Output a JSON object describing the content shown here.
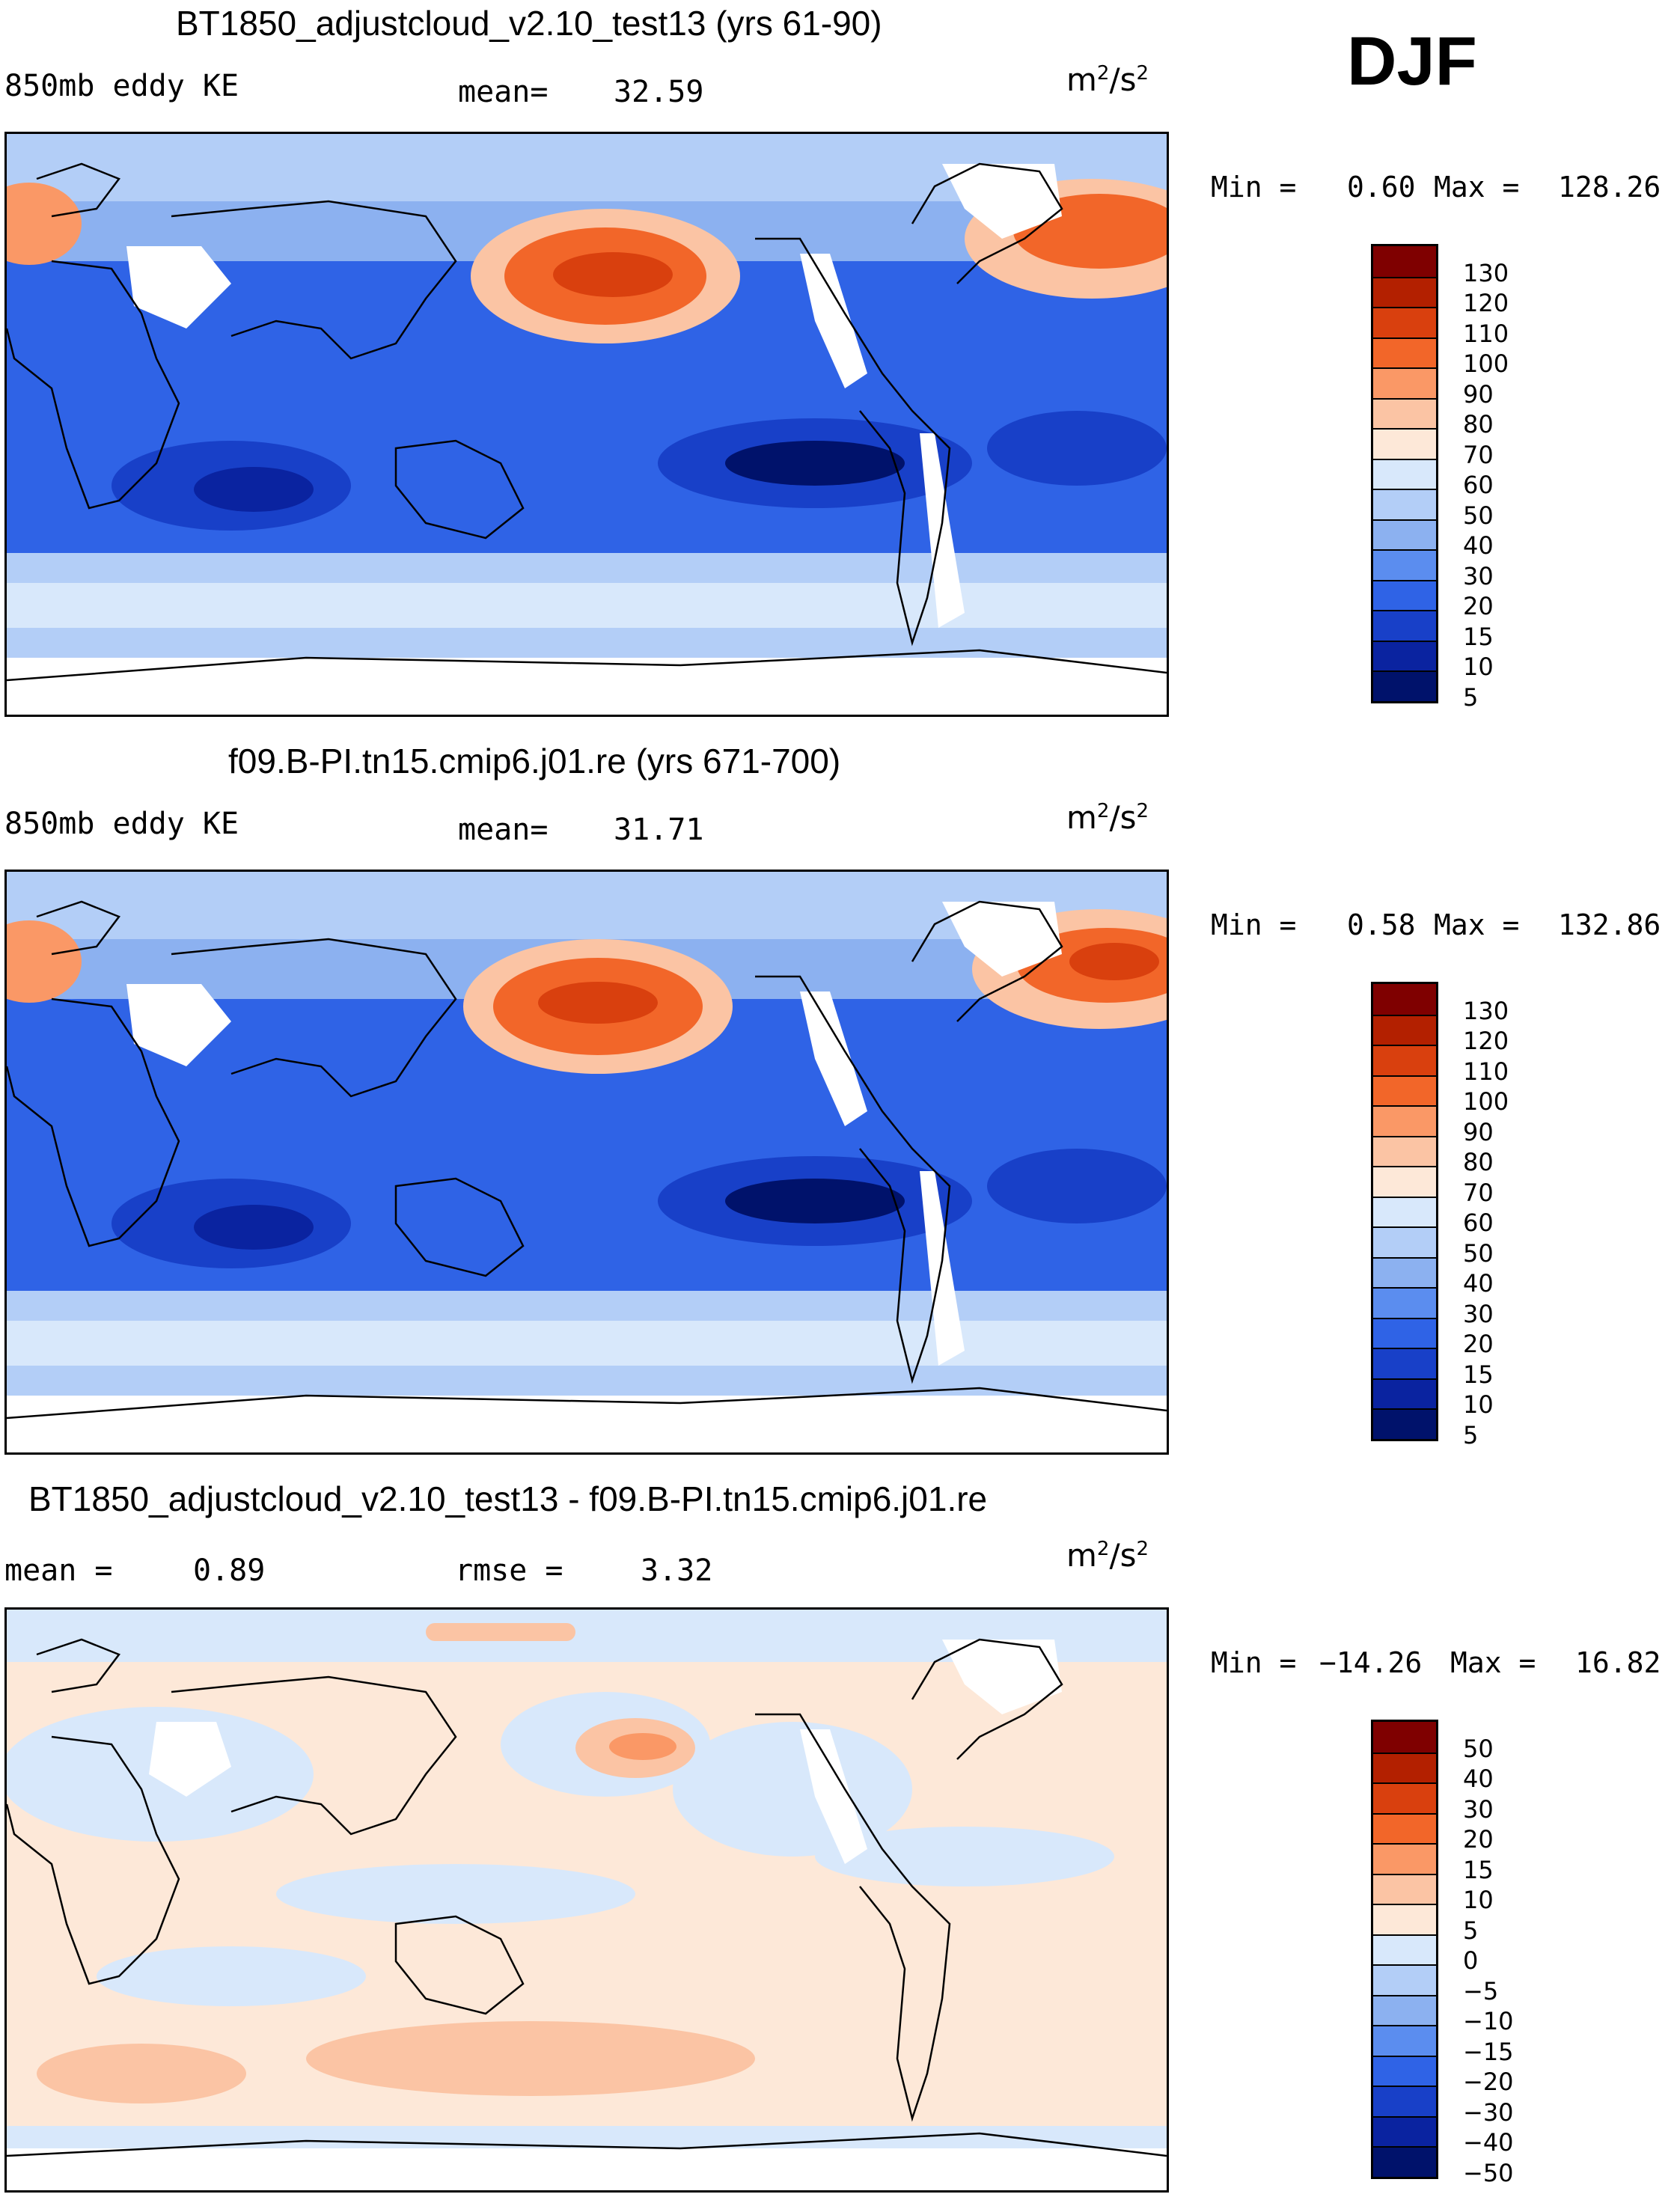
{
  "season": "DJF",
  "panels": [
    {
      "title": "BT1850_adjustcloud_v2.10_test13 (yrs 61-90)",
      "variable": "850mb eddy KE",
      "stat_label": "mean=",
      "stat_value": "32.59",
      "units": "m",
      "units_exp": "2",
      "units_den": "/s",
      "units_den_exp": "2",
      "min_label": "Min =",
      "min_value": "0.60",
      "max_label": "Max =",
      "max_value": "128.26",
      "colorbar": {
        "colors": [
          "#7f0000",
          "#b32000",
          "#d9400e",
          "#f26629",
          "#fa9866",
          "#fbc4a4",
          "#fde8d8",
          "#d8e8fb",
          "#b3cef7",
          "#8cb1f0",
          "#5b8def",
          "#2f63e6",
          "#1840c8",
          "#0a23a0",
          "#00126b"
        ],
        "labels": [
          "130",
          "120",
          "110",
          "100",
          "90",
          "80",
          "70",
          "60",
          "50",
          "40",
          "30",
          "20",
          "15",
          "10",
          "5"
        ]
      }
    },
    {
      "title": "f09.B-PI.tn15.cmip6.j01.re (yrs 671-700)",
      "variable": "850mb eddy KE",
      "stat_label": "mean=",
      "stat_value": "31.71",
      "units": "m",
      "units_exp": "2",
      "units_den": "/s",
      "units_den_exp": "2",
      "min_label": "Min =",
      "min_value": "0.58",
      "max_label": "Max =",
      "max_value": "132.86",
      "colorbar": {
        "colors": [
          "#7f0000",
          "#b32000",
          "#d9400e",
          "#f26629",
          "#fa9866",
          "#fbc4a4",
          "#fde8d8",
          "#d8e8fb",
          "#b3cef7",
          "#8cb1f0",
          "#5b8def",
          "#2f63e6",
          "#1840c8",
          "#0a23a0",
          "#00126b"
        ],
        "labels": [
          "130",
          "120",
          "110",
          "100",
          "90",
          "80",
          "70",
          "60",
          "50",
          "40",
          "30",
          "20",
          "15",
          "10",
          "5"
        ]
      }
    },
    {
      "title": "BT1850_adjustcloud_v2.10_test13 - f09.B-PI.tn15.cmip6.j01.re",
      "stat_label": "mean =",
      "stat_value": "0.89",
      "stat2_label": "rmse =",
      "stat2_value": "3.32",
      "units": "m",
      "units_exp": "2",
      "units_den": "/s",
      "units_den_exp": "2",
      "min_label": "Min =",
      "min_value": "−14.26",
      "max_label": "Max =",
      "max_value": "16.82",
      "colorbar": {
        "colors": [
          "#7f0000",
          "#b32000",
          "#d9400e",
          "#f26629",
          "#fa9866",
          "#fbc4a4",
          "#fde8d8",
          "#d8e8fb",
          "#b3cef7",
          "#8cb1f0",
          "#5b8def",
          "#2f63e6",
          "#1840c8",
          "#0a23a0",
          "#00126b"
        ],
        "labels": [
          "50",
          "40",
          "30",
          "20",
          "15",
          "10",
          "5",
          "0",
          "−5",
          "−10",
          "−15",
          "−20",
          "−30",
          "−40",
          "−50"
        ]
      }
    }
  ]
}
